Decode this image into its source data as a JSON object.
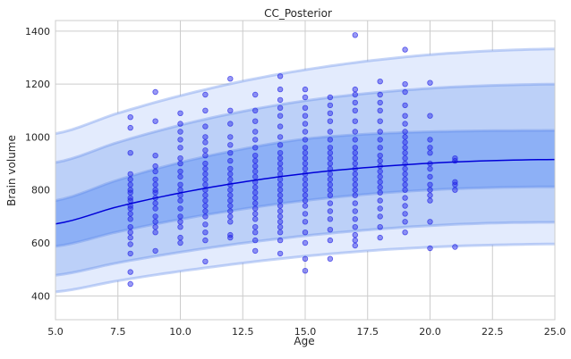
{
  "chart_data": {
    "type": "scatter",
    "title": "CC_Posterior",
    "xlabel": "Age",
    "ylabel": "Brain volume",
    "xlim": [
      5.0,
      25.0
    ],
    "ylim": [
      310,
      1440
    ],
    "xticks": [
      5.0,
      7.5,
      10.0,
      12.5,
      15.0,
      17.5,
      20.0,
      22.5,
      25.0
    ],
    "xtick_labels": [
      "5.0",
      "7.5",
      "10.0",
      "12.5",
      "15.0",
      "17.5",
      "20.0",
      "22.5",
      "25.0"
    ],
    "yticks": [
      400,
      600,
      800,
      1000,
      1200,
      1400
    ],
    "ytick_labels": [
      "400",
      "600",
      "800",
      "1000",
      "1200",
      "1400"
    ],
    "grid": true,
    "colors": {
      "points": "#1f1fe6",
      "median": "#0000d8",
      "band_inner": "#8db0f6",
      "band_mid": "#bcd0f8",
      "band_outer": "#e3ebfd",
      "band_edge": "#5b86e8",
      "grid": "#cccccc",
      "background": "#ffffff"
    },
    "median_curve": {
      "x": [
        5,
        7.5,
        10,
        12.5,
        15,
        17.5,
        20,
        22.5,
        25
      ],
      "y": [
        672,
        737,
        789,
        830,
        862,
        885,
        901,
        911,
        915
      ]
    },
    "centile_curves": [
      {
        "x": [
          5,
          7.5,
          10,
          12.5,
          15,
          17.5,
          20,
          22.5,
          25
        ],
        "y": [
          415,
          457,
          493,
          524,
          550,
          570,
          584,
          592,
          596
        ]
      },
      {
        "x": [
          5,
          7.5,
          10,
          12.5,
          15,
          17.5,
          20,
          22.5,
          25
        ],
        "y": [
          478,
          525,
          565,
          599,
          627,
          649,
          665,
          675,
          678
        ]
      },
      {
        "x": [
          5,
          7.5,
          10,
          12.5,
          15,
          17.5,
          20,
          22.5,
          25
        ],
        "y": [
          587,
          642,
          689,
          728,
          760,
          784,
          800,
          809,
          812
        ]
      },
      {
        "x": [
          5,
          7.5,
          10,
          12.5,
          15,
          17.5,
          20,
          22.5,
          25
        ],
        "y": [
          760,
          838,
          904,
          955,
          993,
          1011,
          1020,
          1024,
          1025
        ]
      },
      {
        "x": [
          5,
          7.5,
          10,
          12.5,
          15,
          17.5,
          20,
          22.5,
          25
        ],
        "y": [
          904,
          980,
          1045,
          1097,
          1137,
          1165,
          1184,
          1195,
          1200
        ]
      },
      {
        "x": [
          5,
          7.5,
          10,
          12.5,
          15,
          17.5,
          20,
          22.5,
          25
        ],
        "y": [
          1013,
          1090,
          1156,
          1211,
          1254,
          1287,
          1311,
          1326,
          1333
        ]
      }
    ],
    "points": [
      [
        8,
        445
      ],
      [
        8,
        490
      ],
      [
        8,
        560
      ],
      [
        8,
        595
      ],
      [
        8,
        620
      ],
      [
        8,
        640
      ],
      [
        8,
        660
      ],
      [
        8,
        690
      ],
      [
        8,
        710
      ],
      [
        8,
        730
      ],
      [
        8,
        740
      ],
      [
        8,
        760
      ],
      [
        8,
        770
      ],
      [
        8,
        790
      ],
      [
        8,
        800
      ],
      [
        8,
        820
      ],
      [
        8,
        840
      ],
      [
        8,
        860
      ],
      [
        8,
        940
      ],
      [
        8,
        1035
      ],
      [
        8,
        1075
      ],
      [
        9,
        570
      ],
      [
        9,
        640
      ],
      [
        9,
        660
      ],
      [
        9,
        680
      ],
      [
        9,
        700
      ],
      [
        9,
        730
      ],
      [
        9,
        750
      ],
      [
        9,
        770
      ],
      [
        9,
        790
      ],
      [
        9,
        800
      ],
      [
        9,
        820
      ],
      [
        9,
        840
      ],
      [
        9,
        870
      ],
      [
        9,
        890
      ],
      [
        9,
        930
      ],
      [
        9,
        1060
      ],
      [
        9,
        1170
      ],
      [
        10,
        600
      ],
      [
        10,
        620
      ],
      [
        10,
        660
      ],
      [
        10,
        680
      ],
      [
        10,
        700
      ],
      [
        10,
        730
      ],
      [
        10,
        760
      ],
      [
        10,
        780
      ],
      [
        10,
        800
      ],
      [
        10,
        820
      ],
      [
        10,
        850
      ],
      [
        10,
        870
      ],
      [
        10,
        900
      ],
      [
        10,
        920
      ],
      [
        10,
        960
      ],
      [
        10,
        990
      ],
      [
        10,
        1020
      ],
      [
        10,
        1050
      ],
      [
        10,
        1090
      ],
      [
        11,
        530
      ],
      [
        11,
        610
      ],
      [
        11,
        640
      ],
      [
        11,
        670
      ],
      [
        11,
        700
      ],
      [
        11,
        720
      ],
      [
        11,
        740
      ],
      [
        11,
        760
      ],
      [
        11,
        780
      ],
      [
        11,
        800
      ],
      [
        11,
        820
      ],
      [
        11,
        840
      ],
      [
        11,
        860
      ],
      [
        11,
        880
      ],
      [
        11,
        900
      ],
      [
        11,
        930
      ],
      [
        11,
        950
      ],
      [
        11,
        980
      ],
      [
        11,
        1000
      ],
      [
        11,
        1040
      ],
      [
        11,
        1100
      ],
      [
        11,
        1160
      ],
      [
        12,
        620
      ],
      [
        12,
        630
      ],
      [
        12,
        680
      ],
      [
        12,
        700
      ],
      [
        12,
        720
      ],
      [
        12,
        740
      ],
      [
        12,
        760
      ],
      [
        12,
        780
      ],
      [
        12,
        800
      ],
      [
        12,
        820
      ],
      [
        12,
        840
      ],
      [
        12,
        860
      ],
      [
        12,
        880
      ],
      [
        12,
        910
      ],
      [
        12,
        940
      ],
      [
        12,
        970
      ],
      [
        12,
        1000
      ],
      [
        12,
        1050
      ],
      [
        12,
        1100
      ],
      [
        12,
        1220
      ],
      [
        13,
        570
      ],
      [
        13,
        610
      ],
      [
        13,
        640
      ],
      [
        13,
        660
      ],
      [
        13,
        690
      ],
      [
        13,
        710
      ],
      [
        13,
        730
      ],
      [
        13,
        750
      ],
      [
        13,
        770
      ],
      [
        13,
        790
      ],
      [
        13,
        810
      ],
      [
        13,
        830
      ],
      [
        13,
        850
      ],
      [
        13,
        870
      ],
      [
        13,
        890
      ],
      [
        13,
        910
      ],
      [
        13,
        930
      ],
      [
        13,
        960
      ],
      [
        13,
        990
      ],
      [
        13,
        1020
      ],
      [
        13,
        1060
      ],
      [
        13,
        1100
      ],
      [
        13,
        1160
      ],
      [
        14,
        560
      ],
      [
        14,
        610
      ],
      [
        14,
        640
      ],
      [
        14,
        660
      ],
      [
        14,
        680
      ],
      [
        14,
        700
      ],
      [
        14,
        720
      ],
      [
        14,
        740
      ],
      [
        14,
        760
      ],
      [
        14,
        780
      ],
      [
        14,
        800
      ],
      [
        14,
        820
      ],
      [
        14,
        840
      ],
      [
        14,
        860
      ],
      [
        14,
        880
      ],
      [
        14,
        900
      ],
      [
        14,
        920
      ],
      [
        14,
        940
      ],
      [
        14,
        970
      ],
      [
        14,
        1000
      ],
      [
        14,
        1040
      ],
      [
        14,
        1080
      ],
      [
        14,
        1110
      ],
      [
        14,
        1140
      ],
      [
        14,
        1180
      ],
      [
        14,
        1230
      ],
      [
        15,
        495
      ],
      [
        15,
        540
      ],
      [
        15,
        600
      ],
      [
        15,
        640
      ],
      [
        15,
        680
      ],
      [
        15,
        710
      ],
      [
        15,
        740
      ],
      [
        15,
        760
      ],
      [
        15,
        780
      ],
      [
        15,
        800
      ],
      [
        15,
        820
      ],
      [
        15,
        840
      ],
      [
        15,
        860
      ],
      [
        15,
        880
      ],
      [
        15,
        900
      ],
      [
        15,
        920
      ],
      [
        15,
        940
      ],
      [
        15,
        960
      ],
      [
        15,
        990
      ],
      [
        15,
        1020
      ],
      [
        15,
        1050
      ],
      [
        15,
        1080
      ],
      [
        15,
        1110
      ],
      [
        15,
        1150
      ],
      [
        15,
        1180
      ],
      [
        16,
        540
      ],
      [
        16,
        610
      ],
      [
        16,
        650
      ],
      [
        16,
        690
      ],
      [
        16,
        720
      ],
      [
        16,
        750
      ],
      [
        16,
        780
      ],
      [
        16,
        800
      ],
      [
        16,
        820
      ],
      [
        16,
        840
      ],
      [
        16,
        860
      ],
      [
        16,
        880
      ],
      [
        16,
        900
      ],
      [
        16,
        920
      ],
      [
        16,
        940
      ],
      [
        16,
        960
      ],
      [
        16,
        990
      ],
      [
        16,
        1020
      ],
      [
        16,
        1060
      ],
      [
        16,
        1090
      ],
      [
        16,
        1120
      ],
      [
        16,
        1150
      ],
      [
        17,
        590
      ],
      [
        17,
        610
      ],
      [
        17,
        630
      ],
      [
        17,
        660
      ],
      [
        17,
        690
      ],
      [
        17,
        720
      ],
      [
        17,
        750
      ],
      [
        17,
        780
      ],
      [
        17,
        800
      ],
      [
        17,
        820
      ],
      [
        17,
        840
      ],
      [
        17,
        860
      ],
      [
        17,
        880
      ],
      [
        17,
        900
      ],
      [
        17,
        920
      ],
      [
        17,
        940
      ],
      [
        17,
        960
      ],
      [
        17,
        990
      ],
      [
        17,
        1020
      ],
      [
        17,
        1060
      ],
      [
        17,
        1100
      ],
      [
        17,
        1130
      ],
      [
        17,
        1160
      ],
      [
        17,
        1180
      ],
      [
        17,
        1385
      ],
      [
        18,
        620
      ],
      [
        18,
        660
      ],
      [
        18,
        700
      ],
      [
        18,
        730
      ],
      [
        18,
        760
      ],
      [
        18,
        790
      ],
      [
        18,
        810
      ],
      [
        18,
        830
      ],
      [
        18,
        850
      ],
      [
        18,
        870
      ],
      [
        18,
        890
      ],
      [
        18,
        910
      ],
      [
        18,
        930
      ],
      [
        18,
        960
      ],
      [
        18,
        990
      ],
      [
        18,
        1020
      ],
      [
        18,
        1060
      ],
      [
        18,
        1100
      ],
      [
        18,
        1130
      ],
      [
        18,
        1160
      ],
      [
        18,
        1210
      ],
      [
        19,
        640
      ],
      [
        19,
        680
      ],
      [
        19,
        710
      ],
      [
        19,
        740
      ],
      [
        19,
        770
      ],
      [
        19,
        800
      ],
      [
        19,
        820
      ],
      [
        19,
        840
      ],
      [
        19,
        860
      ],
      [
        19,
        880
      ],
      [
        19,
        900
      ],
      [
        19,
        920
      ],
      [
        19,
        940
      ],
      [
        19,
        960
      ],
      [
        19,
        980
      ],
      [
        19,
        1000
      ],
      [
        19,
        1020
      ],
      [
        19,
        1050
      ],
      [
        19,
        1080
      ],
      [
        19,
        1120
      ],
      [
        19,
        1170
      ],
      [
        19,
        1200
      ],
      [
        19,
        1330
      ],
      [
        20,
        580
      ],
      [
        20,
        680
      ],
      [
        20,
        760
      ],
      [
        20,
        780
      ],
      [
        20,
        800
      ],
      [
        20,
        820
      ],
      [
        20,
        850
      ],
      [
        20,
        880
      ],
      [
        20,
        900
      ],
      [
        20,
        940
      ],
      [
        20,
        960
      ],
      [
        20,
        990
      ],
      [
        20,
        1080
      ],
      [
        20,
        1205
      ],
      [
        21,
        585
      ],
      [
        21,
        800
      ],
      [
        21,
        820
      ],
      [
        21,
        830
      ],
      [
        21,
        910
      ],
      [
        21,
        920
      ]
    ]
  }
}
